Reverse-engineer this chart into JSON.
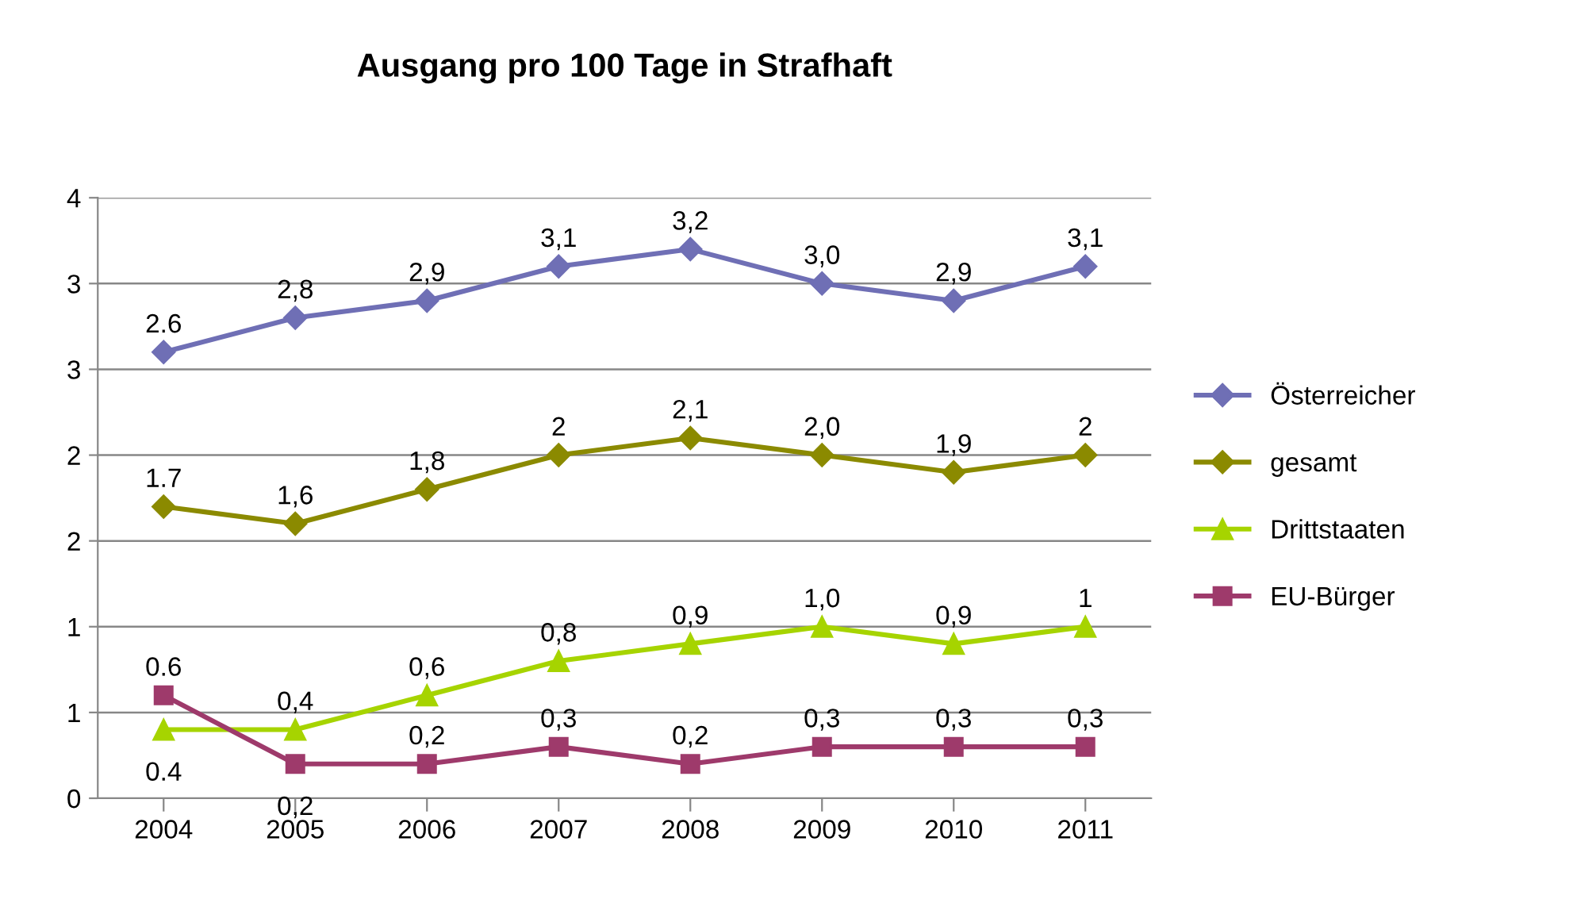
{
  "chart_data": {
    "type": "line",
    "title": "Ausgang pro 100 Tage in Strafhaft",
    "categories": [
      "2004",
      "2005",
      "2006",
      "2007",
      "2008",
      "2009",
      "2010",
      "2011"
    ],
    "series": [
      {
        "name": "Österreicher",
        "color": "#6f6fb5",
        "marker": "diamond",
        "values": [
          2.6,
          2.8,
          2.9,
          3.1,
          3.2,
          3.0,
          2.9,
          3.1
        ],
        "value_labels": [
          "2.6",
          "2,8",
          "2,9",
          "3,1",
          "3,2",
          "3,0",
          "2,9",
          "3,1"
        ]
      },
      {
        "name": "gesamt",
        "color": "#8b8a00",
        "marker": "diamond",
        "values": [
          1.7,
          1.6,
          1.8,
          2,
          2.1,
          2.0,
          1.9,
          2
        ],
        "value_labels": [
          "1.7",
          "1,6",
          "1,8",
          "2",
          "2,1",
          "2,0",
          "1,9",
          "2"
        ]
      },
      {
        "name": "Drittstaaten",
        "color": "#a6d400",
        "marker": "triangle",
        "values": [
          0.4,
          0.4,
          0.6,
          0.8,
          0.9,
          1.0,
          0.9,
          1
        ],
        "value_labels": [
          "0.4",
          "0,4",
          "0,6",
          "0,8",
          "0,9",
          "1,0",
          "0,9",
          "1"
        ]
      },
      {
        "name": "EU-Bürger",
        "color": "#9e3a6b",
        "marker": "square",
        "values": [
          0.6,
          0.2,
          0.2,
          0.3,
          0.2,
          0.3,
          0.3,
          0.3
        ],
        "value_labels": [
          "0.6",
          "0,2",
          "0,2",
          "0,3",
          "0,2",
          "0,3",
          "0,3",
          "0,3"
        ]
      }
    ],
    "ylim": [
      0,
      3.5
    ],
    "yticks": [
      0,
      {
        "value": 0.5,
        "label": "1"
      },
      1,
      {
        "value": 1.5,
        "label": "2"
      },
      2,
      {
        "value": 2.5,
        "label": "3"
      },
      3,
      {
        "value": 3.5,
        "label": "4"
      }
    ],
    "grid": "y",
    "legend": "right",
    "line_style": "solid"
  }
}
